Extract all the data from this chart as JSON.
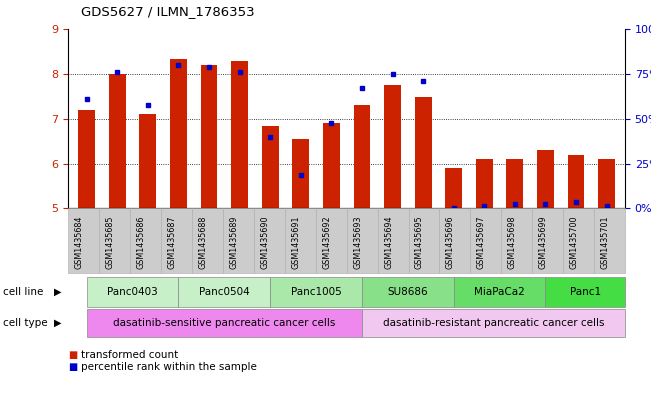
{
  "title": "GDS5627 / ILMN_1786353",
  "samples": [
    "GSM1435684",
    "GSM1435685",
    "GSM1435686",
    "GSM1435687",
    "GSM1435688",
    "GSM1435689",
    "GSM1435690",
    "GSM1435691",
    "GSM1435692",
    "GSM1435693",
    "GSM1435694",
    "GSM1435695",
    "GSM1435696",
    "GSM1435697",
    "GSM1435698",
    "GSM1435699",
    "GSM1435700",
    "GSM1435701"
  ],
  "red_values": [
    7.2,
    8.0,
    7.1,
    8.35,
    8.2,
    8.3,
    6.85,
    6.55,
    6.9,
    7.3,
    7.75,
    7.5,
    5.9,
    6.1,
    6.1,
    6.3,
    6.2,
    6.1
  ],
  "blue_values": [
    7.45,
    8.05,
    7.3,
    8.2,
    8.15,
    8.05,
    6.6,
    5.75,
    6.9,
    7.7,
    8.0,
    7.85,
    5.0,
    5.05,
    5.1,
    5.1,
    5.15,
    5.05
  ],
  "ylim": [
    5,
    9
  ],
  "yticks_left": [
    5,
    6,
    7,
    8,
    9
  ],
  "yticks_right": [
    0,
    25,
    50,
    75,
    100
  ],
  "cell_line_groups": [
    {
      "label": "Panc0403",
      "start": 0,
      "end": 2
    },
    {
      "label": "Panc0504",
      "start": 3,
      "end": 5
    },
    {
      "label": "Panc1005",
      "start": 6,
      "end": 8
    },
    {
      "label": "SU8686",
      "start": 9,
      "end": 11
    },
    {
      "label": "MiaPaCa2",
      "start": 12,
      "end": 14
    },
    {
      "label": "Panc1",
      "start": 15,
      "end": 17
    }
  ],
  "cell_line_colors": [
    "#c8f0c8",
    "#c8f0c8",
    "#aae8aa",
    "#88e088",
    "#66dd66",
    "#44dd44"
  ],
  "cell_type_groups": [
    {
      "label": "dasatinib-sensitive pancreatic cancer cells",
      "start": 0,
      "end": 8
    },
    {
      "label": "dasatinib-resistant pancreatic cancer cells",
      "start": 9,
      "end": 17
    }
  ],
  "cell_type_colors": [
    "#ee88ee",
    "#f0c8f0"
  ],
  "bar_color": "#cc2200",
  "dot_color": "#0000cc",
  "grid_color": "#000000",
  "tick_color_left": "#cc2200",
  "tick_color_right": "#0000cc",
  "bar_width": 0.55,
  "xtick_bg_color": "#cccccc",
  "legend_labels": [
    "transformed count",
    "percentile rank within the sample"
  ],
  "legend_colors": [
    "#cc2200",
    "#0000cc"
  ]
}
